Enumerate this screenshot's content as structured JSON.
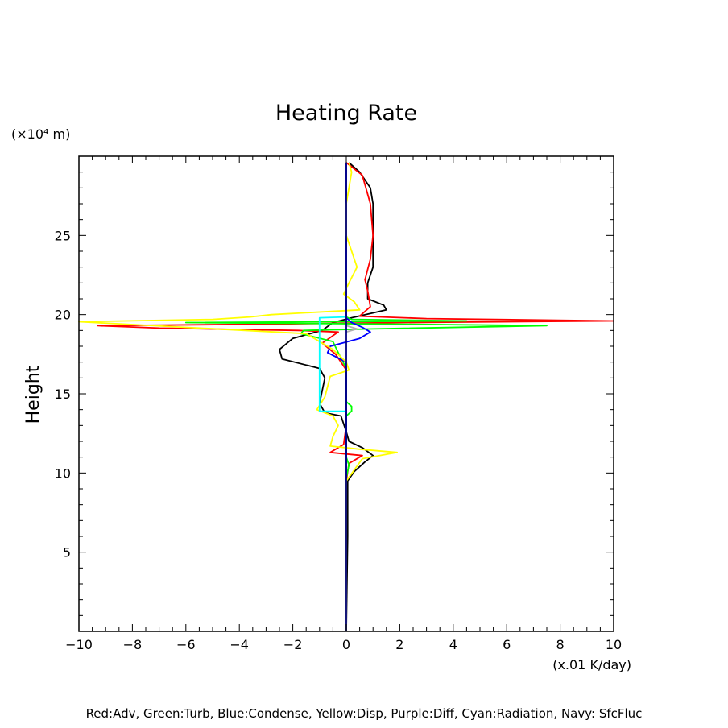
{
  "chart_data": {
    "type": "line",
    "title": "Heating Rate",
    "ylabel": "Height",
    "y_unit_label": "(×10⁴ m)",
    "x_unit_label": "(x.01 K/day)",
    "xlim": [
      -10,
      10
    ],
    "ylim": [
      0,
      30
    ],
    "x_tick_labels": [
      "−10",
      "−8",
      "−6",
      "−4",
      "−2",
      "0",
      "2",
      "4",
      "6",
      "8",
      "10"
    ],
    "y_tick_labels": [
      "5",
      "10",
      "15",
      "20",
      "25"
    ],
    "grid": false,
    "caption": "Red:Adv, Green:Turb, Blue:Condense, Yellow:Disp, Purple:Diff, Cyan:Radiation, Navy: SfcFluc",
    "series": [
      {
        "color": "#000000",
        "points": [
          [
            0,
            0
          ],
          [
            0.05,
            6
          ],
          [
            0.05,
            9.5
          ],
          [
            0.3,
            10.1
          ],
          [
            0.7,
            10.7
          ],
          [
            1.0,
            11.1
          ],
          [
            0.6,
            11.6
          ],
          [
            0.1,
            12
          ],
          [
            0,
            12.6
          ],
          [
            -0.2,
            13.6
          ],
          [
            -0.8,
            13.8
          ],
          [
            -1.0,
            14.4
          ],
          [
            -0.9,
            15.2
          ],
          [
            -0.8,
            16.0
          ],
          [
            -1.0,
            16.6
          ],
          [
            -2.4,
            17.2
          ],
          [
            -2.5,
            17.8
          ],
          [
            -2.0,
            18.5
          ],
          [
            -0.9,
            19.0
          ],
          [
            -0.5,
            19.5
          ],
          [
            0.2,
            19.8
          ],
          [
            1.5,
            20.3
          ],
          [
            1.4,
            20.6
          ],
          [
            0.8,
            21.0
          ],
          [
            0.8,
            22.0
          ],
          [
            1.0,
            23.0
          ],
          [
            1.0,
            25.0
          ],
          [
            1.0,
            27.0
          ],
          [
            0.9,
            28.0
          ],
          [
            0.5,
            29.0
          ],
          [
            0.1,
            29.6
          ]
        ]
      },
      {
        "color": "#ff0000",
        "points": [
          [
            0,
            0
          ],
          [
            0,
            9.5
          ],
          [
            0.1,
            10.6
          ],
          [
            0.6,
            11.1
          ],
          [
            -0.6,
            11.3
          ],
          [
            -0.1,
            11.8
          ],
          [
            0,
            13.0
          ],
          [
            0,
            16.5
          ],
          [
            -0.4,
            17.5
          ],
          [
            -0.9,
            18.2
          ],
          [
            -0.3,
            18.9
          ],
          [
            -1.8,
            19.0
          ],
          [
            -7,
            19.15
          ],
          [
            -9.3,
            19.3
          ],
          [
            -3,
            19.4
          ],
          [
            2,
            19.5
          ],
          [
            10,
            19.6
          ],
          [
            3,
            19.75
          ],
          [
            0.5,
            19.9
          ],
          [
            0.9,
            20.5
          ],
          [
            0.8,
            21.5
          ],
          [
            0.7,
            22.2
          ],
          [
            0.9,
            23.5
          ],
          [
            1.0,
            25.0
          ],
          [
            0.9,
            27.0
          ],
          [
            0.6,
            28.8
          ],
          [
            0,
            29.6
          ]
        ]
      },
      {
        "color": "#00ff00",
        "points": [
          [
            0,
            0
          ],
          [
            0,
            9.7
          ],
          [
            0.1,
            10.5
          ],
          [
            0,
            11
          ],
          [
            0,
            13.6
          ],
          [
            0.2,
            13.9
          ],
          [
            0.2,
            14.2
          ],
          [
            0,
            14.5
          ],
          [
            0,
            16.6
          ],
          [
            -0.3,
            17.6
          ],
          [
            -0.5,
            18.3
          ],
          [
            -1.7,
            18.8
          ],
          [
            -1.6,
            19.0
          ],
          [
            1.0,
            19.1
          ],
          [
            7.5,
            19.3
          ],
          [
            2,
            19.4
          ],
          [
            -6,
            19.5
          ],
          [
            4.5,
            19.6
          ],
          [
            0.2,
            19.7
          ],
          [
            0,
            19.85
          ]
        ]
      },
      {
        "color": "#0000ff",
        "points": [
          [
            0,
            0
          ],
          [
            0,
            17.0
          ],
          [
            -0.7,
            17.6
          ],
          [
            -0.6,
            18.0
          ],
          [
            0.5,
            18.5
          ],
          [
            0.9,
            18.9
          ],
          [
            0.6,
            19.2
          ],
          [
            0.2,
            19.5
          ],
          [
            0,
            19.8
          ],
          [
            0,
            29.6
          ]
        ]
      },
      {
        "color": "#ffff00",
        "points": [
          [
            0,
            0
          ],
          [
            0,
            9.5
          ],
          [
            0.3,
            10.2
          ],
          [
            0.6,
            10.9
          ],
          [
            1.9,
            11.3
          ],
          [
            0.5,
            11.5
          ],
          [
            -0.6,
            11.7
          ],
          [
            -0.5,
            12.3
          ],
          [
            -0.3,
            13.0
          ],
          [
            -0.5,
            13.6
          ],
          [
            -1.1,
            14.0
          ],
          [
            -0.8,
            14.8
          ],
          [
            -0.6,
            16.1
          ],
          [
            0.1,
            16.5
          ],
          [
            0,
            17
          ],
          [
            -0.5,
            17.8
          ],
          [
            -1.5,
            18.8
          ],
          [
            -10,
            19.55
          ],
          [
            -5,
            19.7
          ],
          [
            -3.6,
            19.85
          ],
          [
            -2.8,
            20.0
          ],
          [
            0.5,
            20.3
          ],
          [
            0.3,
            20.8
          ],
          [
            -0.1,
            21.3
          ],
          [
            0.1,
            22.0
          ],
          [
            0.4,
            23.0
          ],
          [
            0,
            25.0
          ],
          [
            0,
            27.0
          ],
          [
            0.2,
            29.0
          ],
          [
            0.1,
            29.6
          ]
        ]
      },
      {
        "color": "#b0b0b0",
        "points": [
          [
            0,
            18.9
          ],
          [
            0.4,
            19.1
          ],
          [
            0.2,
            19.2
          ],
          [
            0,
            19.3
          ]
        ]
      },
      {
        "color": "#00ffff",
        "points": [
          [
            0,
            13.9
          ],
          [
            -1.0,
            13.9
          ],
          [
            -1.0,
            19.8
          ],
          [
            0,
            19.85
          ]
        ]
      },
      {
        "color": "#000080",
        "points": [
          [
            0,
            0
          ],
          [
            0,
            29.6
          ]
        ]
      }
    ]
  }
}
